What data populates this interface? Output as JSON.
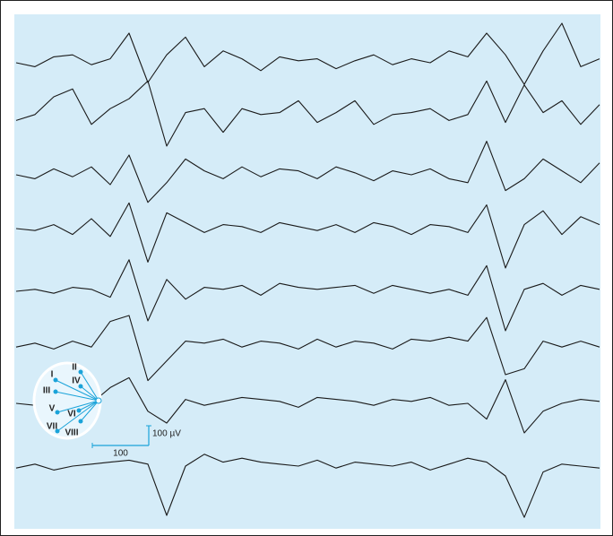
{
  "chart_data": {
    "type": "line",
    "series": [
      {
        "name": "I",
        "color": "#1a1a1a",
        "values": [
          0,
          -20,
          30,
          40,
          -10,
          20,
          150,
          -100,
          40,
          130,
          -20,
          60,
          20,
          -40,
          30,
          10,
          20,
          -30,
          10,
          40,
          -10,
          20,
          0,
          60,
          30,
          150,
          40,
          -110,
          60,
          200,
          -20,
          20
        ]
      },
      {
        "name": "II",
        "color": "#1a1a1a",
        "values": [
          -20,
          10,
          100,
          140,
          -40,
          40,
          90,
          180,
          -150,
          20,
          40,
          -80,
          40,
          10,
          20,
          80,
          -30,
          20,
          80,
          -40,
          10,
          20,
          40,
          -20,
          10,
          180,
          -30,
          160,
          20,
          80,
          -40,
          60
        ]
      },
      {
        "name": "III",
        "color": "#1a1a1a",
        "values": [
          0,
          -20,
          30,
          -10,
          40,
          -50,
          100,
          -140,
          -40,
          80,
          20,
          -20,
          40,
          -10,
          30,
          20,
          -20,
          40,
          10,
          -30,
          20,
          0,
          30,
          -20,
          -40,
          170,
          -80,
          -20,
          80,
          20,
          -40,
          60
        ]
      },
      {
        "name": "IV",
        "color": "#1a1a1a",
        "values": [
          0,
          -10,
          20,
          -30,
          50,
          -40,
          130,
          -170,
          80,
          30,
          -20,
          20,
          10,
          -20,
          30,
          10,
          -10,
          20,
          -20,
          30,
          10,
          -30,
          20,
          10,
          -20,
          120,
          -200,
          20,
          90,
          -30,
          60,
          20
        ]
      },
      {
        "name": "V",
        "color": "#1a1a1a",
        "values": [
          0,
          10,
          -10,
          20,
          10,
          -30,
          160,
          -150,
          60,
          -40,
          20,
          10,
          30,
          -20,
          40,
          20,
          10,
          20,
          30,
          -10,
          30,
          10,
          -10,
          10,
          -20,
          130,
          -200,
          10,
          40,
          -20,
          30,
          10
        ]
      },
      {
        "name": "VI",
        "color": "#1a1a1a",
        "values": [
          -10,
          10,
          -20,
          20,
          -10,
          120,
          150,
          -180,
          -80,
          20,
          10,
          30,
          -10,
          20,
          10,
          -20,
          30,
          -10,
          20,
          10,
          -20,
          30,
          20,
          40,
          20,
          140,
          -150,
          -120,
          20,
          -10,
          20,
          -10
        ]
      },
      {
        "name": "VII",
        "color": "#1a1a1a",
        "values": [
          0,
          -10,
          20,
          -20,
          0,
          80,
          130,
          -40,
          -100,
          20,
          -10,
          10,
          30,
          20,
          10,
          -20,
          30,
          20,
          10,
          -10,
          20,
          10,
          30,
          -10,
          0,
          -80,
          120,
          -150,
          -40,
          0,
          20,
          10
        ]
      },
      {
        "name": "VIII",
        "color": "#1a1a1a",
        "values": [
          -10,
          10,
          -20,
          0,
          10,
          20,
          30,
          10,
          -250,
          0,
          60,
          20,
          40,
          20,
          10,
          0,
          30,
          -10,
          20,
          10,
          0,
          20,
          -20,
          10,
          40,
          20,
          -50,
          -260,
          -30,
          10,
          0,
          -10
        ]
      }
    ],
    "scale_bar": {
      "y": {
        "value": 100,
        "label": "100 µV"
      },
      "x": {
        "value": 100,
        "label": "100"
      }
    },
    "background": "#d5ecf8",
    "accent": "#1aa3d9"
  }
}
